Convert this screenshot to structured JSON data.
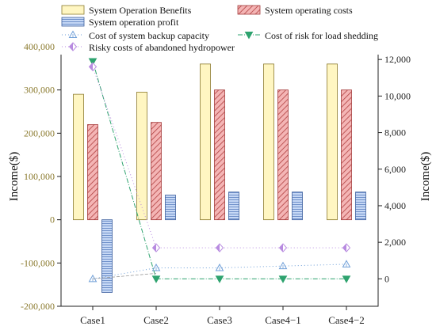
{
  "chart_data": {
    "type": "bar",
    "categories": [
      "Case1",
      "Case2",
      "Case3",
      "Case4−1",
      "Case4−2"
    ],
    "ylabel_left": "Income($)",
    "ylabel_right": "Income($)",
    "ylim_left": [
      -200000,
      400000
    ],
    "yticks_left": [
      "400,000",
      "300,000",
      "200,000",
      "100,000",
      "0",
      "-100,000",
      "-200,000"
    ],
    "ylim_right": [
      -1500,
      12700
    ],
    "yticks_right": [
      "12,000",
      "10,000",
      "8,000",
      "6,000",
      "4,000",
      "2,000",
      "0"
    ],
    "bar_series": [
      {
        "name": "System Operation Benefits",
        "axis": "left",
        "color": "#fff6c2",
        "edge": "#8b7a2e",
        "pattern": "solid",
        "values": [
          290000,
          295000,
          360000,
          360000,
          360000
        ]
      },
      {
        "name": "System operating costs",
        "axis": "left",
        "color": "#f4b5b5",
        "edge": "#a33a3a",
        "pattern": "hatch",
        "values": [
          220000,
          225000,
          300000,
          300000,
          300000
        ]
      },
      {
        "name": "System operation profit",
        "axis": "left",
        "color": "#b7cdf0",
        "edge": "#3c5f9e",
        "pattern": "hlines",
        "values": [
          -168000,
          57000,
          64000,
          64000,
          64000
        ]
      }
    ],
    "line_series": [
      {
        "name": "Cost of system backup capacity",
        "axis": "right",
        "color": "#6f9fd8",
        "marker": "triangle-up-open",
        "dash": "1,3",
        "values": [
          0,
          600,
          600,
          700,
          800
        ]
      },
      {
        "name": "Cost of risk for load shedding",
        "axis": "right",
        "color": "#2ea36f",
        "marker": "triangle-down-filled",
        "dash": "6,2,1,2",
        "values": [
          11900,
          0,
          0,
          0,
          0
        ]
      },
      {
        "name": "Risky costs of abandoned hydropower",
        "axis": "right",
        "color": "#b88be0",
        "marker": "diamond-half",
        "dash": "1,3",
        "values": [
          11600,
          1700,
          1700,
          1700,
          1700
        ]
      }
    ]
  }
}
